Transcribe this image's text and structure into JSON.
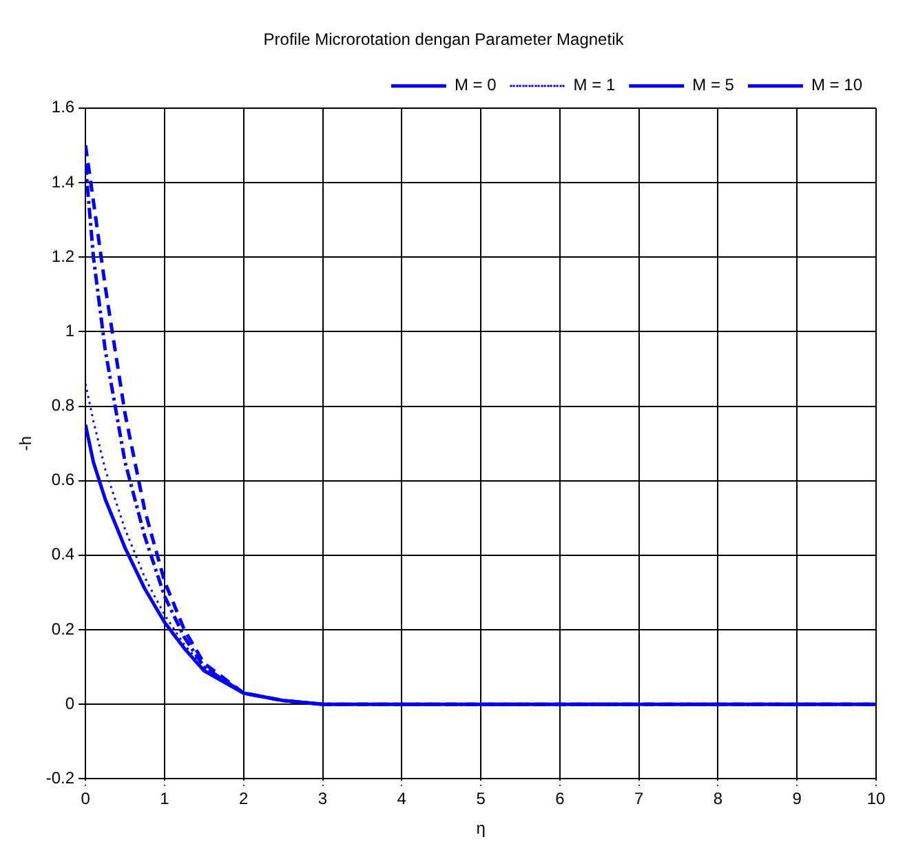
{
  "chart_data": {
    "type": "line",
    "title": "Profile Microrotation dengan Parameter Magnetik",
    "xlabel": "η",
    "ylabel": "-h",
    "x": [
      0,
      0.1,
      0.25,
      0.5,
      0.75,
      1,
      1.25,
      1.5,
      2,
      2.5,
      3,
      4,
      5,
      6,
      7,
      8,
      9,
      10
    ],
    "series": [
      {
        "name": "M = 0",
        "color": "#0000ff",
        "line_style": "solid",
        "values": [
          0.75,
          0.65,
          0.55,
          0.42,
          0.31,
          0.22,
          0.15,
          0.09,
          0.03,
          0.01,
          0,
          0,
          0,
          0,
          0,
          0,
          0,
          0
        ]
      },
      {
        "name": "M = 1",
        "color": "#0000ff",
        "line_style": "dotted",
        "values": [
          0.86,
          0.76,
          0.63,
          0.47,
          0.34,
          0.24,
          0.16,
          0.1,
          0.03,
          0.01,
          0,
          0,
          0,
          0,
          0,
          0,
          0,
          0
        ]
      },
      {
        "name": "M = 5",
        "color": "#0000ff",
        "line_style": "dashdot",
        "values": [
          1.45,
          1.2,
          0.95,
          0.65,
          0.45,
          0.29,
          0.18,
          0.1,
          0.03,
          0.01,
          0,
          0,
          0,
          0,
          0,
          0,
          0,
          0
        ]
      },
      {
        "name": "M = 10",
        "color": "#0000ff",
        "line_style": "dashed",
        "values": [
          1.5,
          1.35,
          1.12,
          0.78,
          0.52,
          0.33,
          0.2,
          0.11,
          0.03,
          0.01,
          0,
          0,
          0,
          0,
          0,
          0,
          0,
          0
        ]
      }
    ],
    "xlim": [
      0,
      10
    ],
    "xticks": [
      0,
      1,
      2,
      3,
      4,
      5,
      6,
      7,
      8,
      9,
      10
    ],
    "ylim": [
      -0.2,
      1.6
    ],
    "yticks": [
      -0.2,
      0,
      0.2,
      0.4,
      0.6,
      0.8,
      1,
      1.2,
      1.4,
      1.6
    ],
    "grid": true,
    "legend": "top right",
    "marker": "none"
  }
}
